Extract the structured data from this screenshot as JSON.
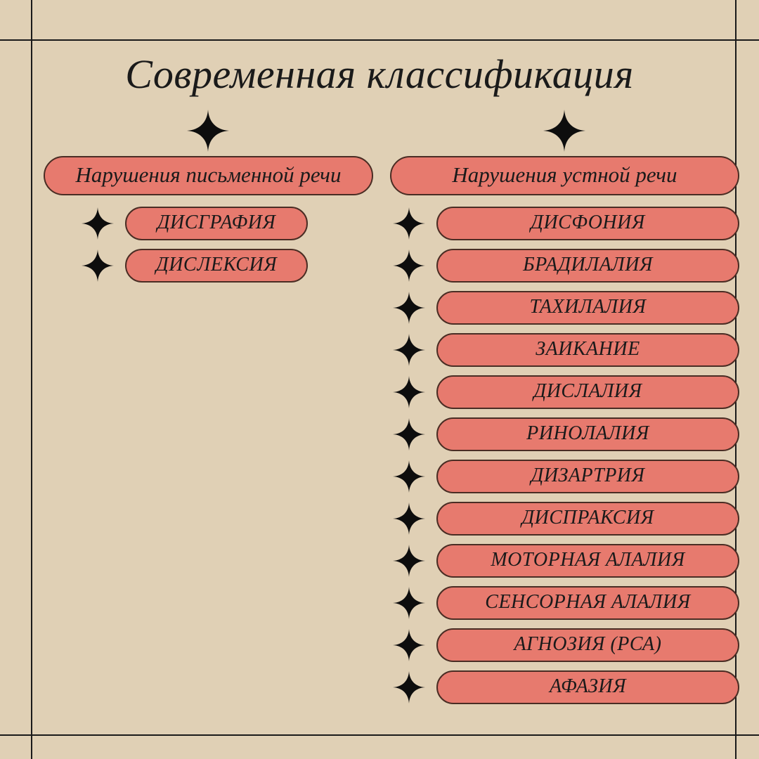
{
  "type": "infographic",
  "background_color": "#e0d0b5",
  "grid_color": "#1a1a1a",
  "pill_bg": "#e77a6e",
  "pill_border": "#4a2d24",
  "text_color": "#1a1a1a",
  "star_color": "#0d0d0d",
  "title": "Современная классификация",
  "title_fontsize": 58,
  "title_style": "italic",
  "header_fontsize": 31,
  "item_fontsize": 28,
  "grid": {
    "h_lines": [
      56,
      1045
    ],
    "v_lines": [
      44,
      1046
    ]
  },
  "columns": [
    {
      "header": "Нарушения письменной речи",
      "items": [
        "ДИСГРАФИЯ",
        "ДИСЛЕКСИЯ"
      ]
    },
    {
      "header": "Нарушения устной речи",
      "items": [
        "ДИСФОНИЯ",
        "БРАДИЛАЛИЯ",
        "ТАХИЛАЛИЯ",
        "ЗАИКАНИЕ",
        "ДИСЛАЛИЯ",
        "РИНОЛАЛИЯ",
        "ДИЗАРТРИЯ",
        "ДИСПРАКСИЯ",
        "МОТОРНАЯ АЛАЛИЯ",
        "СЕНСОРНАЯ АЛАЛИЯ",
        "АГНОЗИЯ (РСА)",
        "АФАЗИЯ"
      ]
    }
  ]
}
